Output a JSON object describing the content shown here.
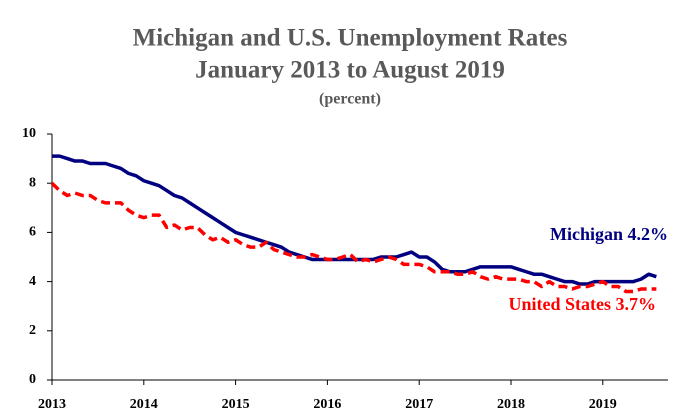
{
  "chart_data": {
    "type": "line",
    "title": "Michigan and U.S. Unemployment Rates",
    "subtitle": "January 2013 to August 2019",
    "y_label": "(percent)",
    "categories": [
      "2013",
      null,
      null,
      null,
      null,
      null,
      null,
      null,
      null,
      null,
      null,
      null,
      "2014",
      null,
      null,
      null,
      null,
      null,
      null,
      null,
      null,
      null,
      null,
      null,
      "2015",
      null,
      null,
      null,
      null,
      null,
      null,
      null,
      null,
      null,
      null,
      null,
      "2016",
      null,
      null,
      null,
      null,
      null,
      null,
      null,
      null,
      null,
      null,
      null,
      "2017",
      null,
      null,
      null,
      null,
      null,
      null,
      null,
      null,
      null,
      null,
      null,
      "2018",
      null,
      null,
      null,
      null,
      null,
      null,
      null,
      null,
      null,
      null,
      null,
      "2019",
      null,
      null,
      null,
      null,
      null,
      null,
      null
    ],
    "series": [
      {
        "name": "Michigan 4.2%",
        "color": "#000080",
        "dash": false,
        "values": [
          9.1,
          9.1,
          9.0,
          8.9,
          8.9,
          8.8,
          8.8,
          8.8,
          8.7,
          8.6,
          8.4,
          8.3,
          8.1,
          8.0,
          7.9,
          7.7,
          7.5,
          7.4,
          7.2,
          7.0,
          6.8,
          6.6,
          6.4,
          6.2,
          6.0,
          5.9,
          5.8,
          5.7,
          5.6,
          5.5,
          5.4,
          5.2,
          5.1,
          5.0,
          4.9,
          4.9,
          4.9,
          4.9,
          4.9,
          4.9,
          4.9,
          4.9,
          4.9,
          5.0,
          5.0,
          5.0,
          5.1,
          5.2,
          5.0,
          5.0,
          4.8,
          4.5,
          4.4,
          4.4,
          4.4,
          4.5,
          4.6,
          4.6,
          4.6,
          4.6,
          4.6,
          4.5,
          4.4,
          4.3,
          4.3,
          4.2,
          4.1,
          4.0,
          4.0,
          3.9,
          3.9,
          4.0,
          4.0,
          4.0,
          4.0,
          4.0,
          4.0,
          4.1,
          4.3,
          4.2
        ]
      },
      {
        "name": "United States 3.7%",
        "color": "#ff0000",
        "dash": true,
        "values": [
          8.0,
          7.7,
          7.5,
          7.6,
          7.5,
          7.5,
          7.3,
          7.2,
          7.2,
          7.2,
          6.9,
          6.7,
          6.6,
          6.7,
          6.7,
          6.2,
          6.3,
          6.1,
          6.2,
          6.2,
          5.9,
          5.7,
          5.8,
          5.6,
          5.7,
          5.5,
          5.4,
          5.4,
          5.6,
          5.3,
          5.2,
          5.1,
          5.0,
          5.0,
          5.1,
          5.0,
          4.9,
          4.9,
          5.0,
          5.1,
          4.8,
          4.9,
          4.8,
          4.9,
          5.0,
          4.9,
          4.7,
          4.7,
          4.7,
          4.6,
          4.4,
          4.4,
          4.4,
          4.3,
          4.3,
          4.4,
          4.2,
          4.1,
          4.2,
          4.1,
          4.1,
          4.1,
          4.0,
          4.0,
          3.8,
          4.0,
          3.8,
          3.8,
          3.7,
          3.8,
          3.8,
          3.9,
          4.0,
          3.8,
          3.8,
          3.6,
          3.6,
          3.7,
          3.7,
          3.7
        ]
      }
    ],
    "ylim": [
      0,
      10
    ],
    "yticks": [
      0,
      2,
      4,
      6,
      8,
      10
    ],
    "grid": false
  }
}
